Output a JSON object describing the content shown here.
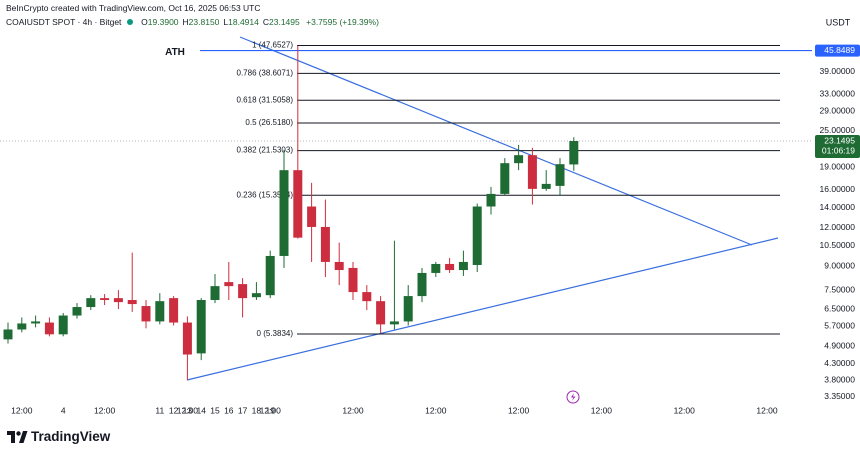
{
  "header": {
    "attribution": "BeInCrypto created with TradingView.com, Oct 16, 2025 06:53 UTC",
    "symbol": "COAIUSDT SPOT · 4h · Bitget",
    "ohlc": [
      {
        "key": "O",
        "value": "19.3900"
      },
      {
        "key": "H",
        "value": "23.8150"
      },
      {
        "key": "L",
        "value": "18.4914"
      },
      {
        "key": "C",
        "value": "23.1495"
      }
    ],
    "change": "+3.7595 (+19.39%)"
  },
  "chart_data": {
    "type": "candlestick",
    "x": [
      0,
      1,
      2,
      3,
      4,
      5,
      6,
      7,
      8,
      9,
      10,
      11,
      12,
      13,
      14,
      15,
      16,
      17,
      18,
      19,
      20,
      21,
      22,
      23,
      24,
      25,
      26,
      27,
      28,
      29,
      30,
      31,
      32,
      33,
      34,
      35,
      36,
      37,
      38,
      39,
      40,
      41
    ],
    "open": [
      5.17,
      5.57,
      5.83,
      5.87,
      5.37,
      6.19,
      6.6,
      7.06,
      7.06,
      6.96,
      6.65,
      5.92,
      7.06,
      5.87,
      4.65,
      6.96,
      7.97,
      7.85,
      7.11,
      7.22,
      9.71,
      18.57,
      14.11,
      12.09,
      9.28,
      8.87,
      7.39,
      6.9,
      5.79,
      5.92,
      7.17,
      8.54,
      9.14,
      8.73,
      9.07,
      14.11,
      15.52,
      19.58,
      20.8,
      16.12,
      16.49,
      19.39
    ],
    "high": [
      5.87,
      6.1,
      6.19,
      6.1,
      6.31,
      6.8,
      7.22,
      7.28,
      7.5,
      9.96,
      6.96,
      7.33,
      7.17,
      6.15,
      7.06,
      8.47,
      9.28,
      8.21,
      7.97,
      10.11,
      21.66,
      47.6527,
      16.87,
      14.87,
      10.74,
      9.28,
      7.79,
      7.17,
      10.9,
      7.79,
      8.87,
      9.28,
      9.56,
      10.11,
      14.43,
      16.36,
      20.34,
      22.49,
      21.99,
      18.57,
      20.34,
      23.815
    ],
    "low": [
      5.01,
      5.45,
      5.66,
      5.29,
      5.29,
      6.05,
      6.45,
      6.7,
      6.5,
      6.36,
      5.62,
      5.79,
      5.74,
      3.8,
      4.42,
      6.8,
      6.96,
      6.1,
      6.96,
      7.06,
      8.87,
      11.07,
      9.28,
      8.28,
      7.79,
      6.96,
      6.45,
      5.41,
      5.57,
      5.74,
      6.85,
      8.28,
      8.54,
      8.35,
      8.6,
      13.28,
      15.29,
      18.57,
      14.32,
      15.88,
      15.29,
      18.4914
    ],
    "close": [
      5.57,
      5.83,
      5.92,
      5.37,
      6.19,
      6.6,
      7.06,
      6.96,
      6.85,
      6.75,
      5.92,
      6.9,
      5.87,
      4.61,
      6.96,
      7.73,
      7.73,
      7.06,
      7.33,
      9.71,
      18.57,
      11.15,
      12.09,
      9.28,
      8.73,
      7.39,
      6.9,
      5.79,
      5.92,
      7.17,
      8.54,
      9.14,
      8.73,
      9.28,
      14.11,
      15.52,
      19.58,
      20.8,
      16.12,
      16.74,
      19.43,
      23.1495
    ],
    "up_color": "#1f6b34",
    "down_color": "#cc2e3f",
    "xlim": [
      -0.58,
      58.26
    ],
    "xticks": [
      {
        "value": 1,
        "label": "12:00"
      },
      4,
      {
        "value": 7,
        "label": "12:00"
      },
      11,
      {
        "value": 13,
        "label": "12:00"
      },
      12,
      {
        "value": 19,
        "label": "12:00"
      },
      13,
      {
        "value": 25,
        "label": "12:00"
      },
      14,
      {
        "value": 31,
        "label": "12:00"
      },
      15,
      {
        "value": 37,
        "label": "12:00"
      },
      16,
      {
        "value": 43,
        "label": "12:00"
      },
      17,
      {
        "value": 49,
        "label": "12:00"
      },
      18,
      {
        "value": 55,
        "label": "12:00"
      },
      19
    ],
    "ylim": [
      3.22,
      67.2
    ],
    "log_scale": true,
    "y_unit": "USDT",
    "yticks": [
      {
        "value": 39,
        "label": "39.00000"
      },
      {
        "value": 33,
        "label": "33.00000"
      },
      {
        "value": 29,
        "label": "29.00000"
      },
      {
        "value": 25,
        "label": "25.00000"
      },
      {
        "value": 19,
        "label": "19.00000"
      },
      {
        "value": 16,
        "label": "16.00000"
      },
      {
        "value": 14,
        "label": "14.00000"
      },
      {
        "value": 12,
        "label": "12.00000"
      },
      {
        "value": 10.5,
        "label": "10.50000"
      },
      {
        "value": 9,
        "label": "9.00000"
      },
      {
        "value": 7.5,
        "label": "7.50000"
      },
      {
        "value": 6.5,
        "label": "6.50000"
      },
      {
        "value": 5.7,
        "label": "5.70000"
      },
      {
        "value": 4.9,
        "label": "4.90000"
      },
      {
        "value": 4.3,
        "label": "4.30000"
      },
      {
        "value": 3.8,
        "label": "3.80000"
      },
      {
        "value": 3.35,
        "label": "3.35000"
      }
    ],
    "fib_levels": [
      {
        "value": 47.6527,
        "label": "1 (47.6527)"
      },
      {
        "value": 38.6071,
        "label": "0.786 (38.6071)"
      },
      {
        "value": 31.5058,
        "label": "0.618 (31.5058)"
      },
      {
        "value": 26.518,
        "label": "0.5 (26.5180)"
      },
      {
        "value": 21.5303,
        "label": "0.382 (21.5303)"
      },
      {
        "value": 15.3584,
        "label": "0.236 (15.3584)"
      },
      {
        "value": 5.3834,
        "label": "0 (5.3834)"
      }
    ],
    "ath_line": {
      "label": "ATH",
      "value": 45.8489,
      "color": "#2962ff"
    },
    "last_price": {
      "value": 23.1495,
      "countdown": "01:06:19",
      "color": "#1f6b34"
    }
  },
  "footer": {
    "logo": "TradingView"
  }
}
